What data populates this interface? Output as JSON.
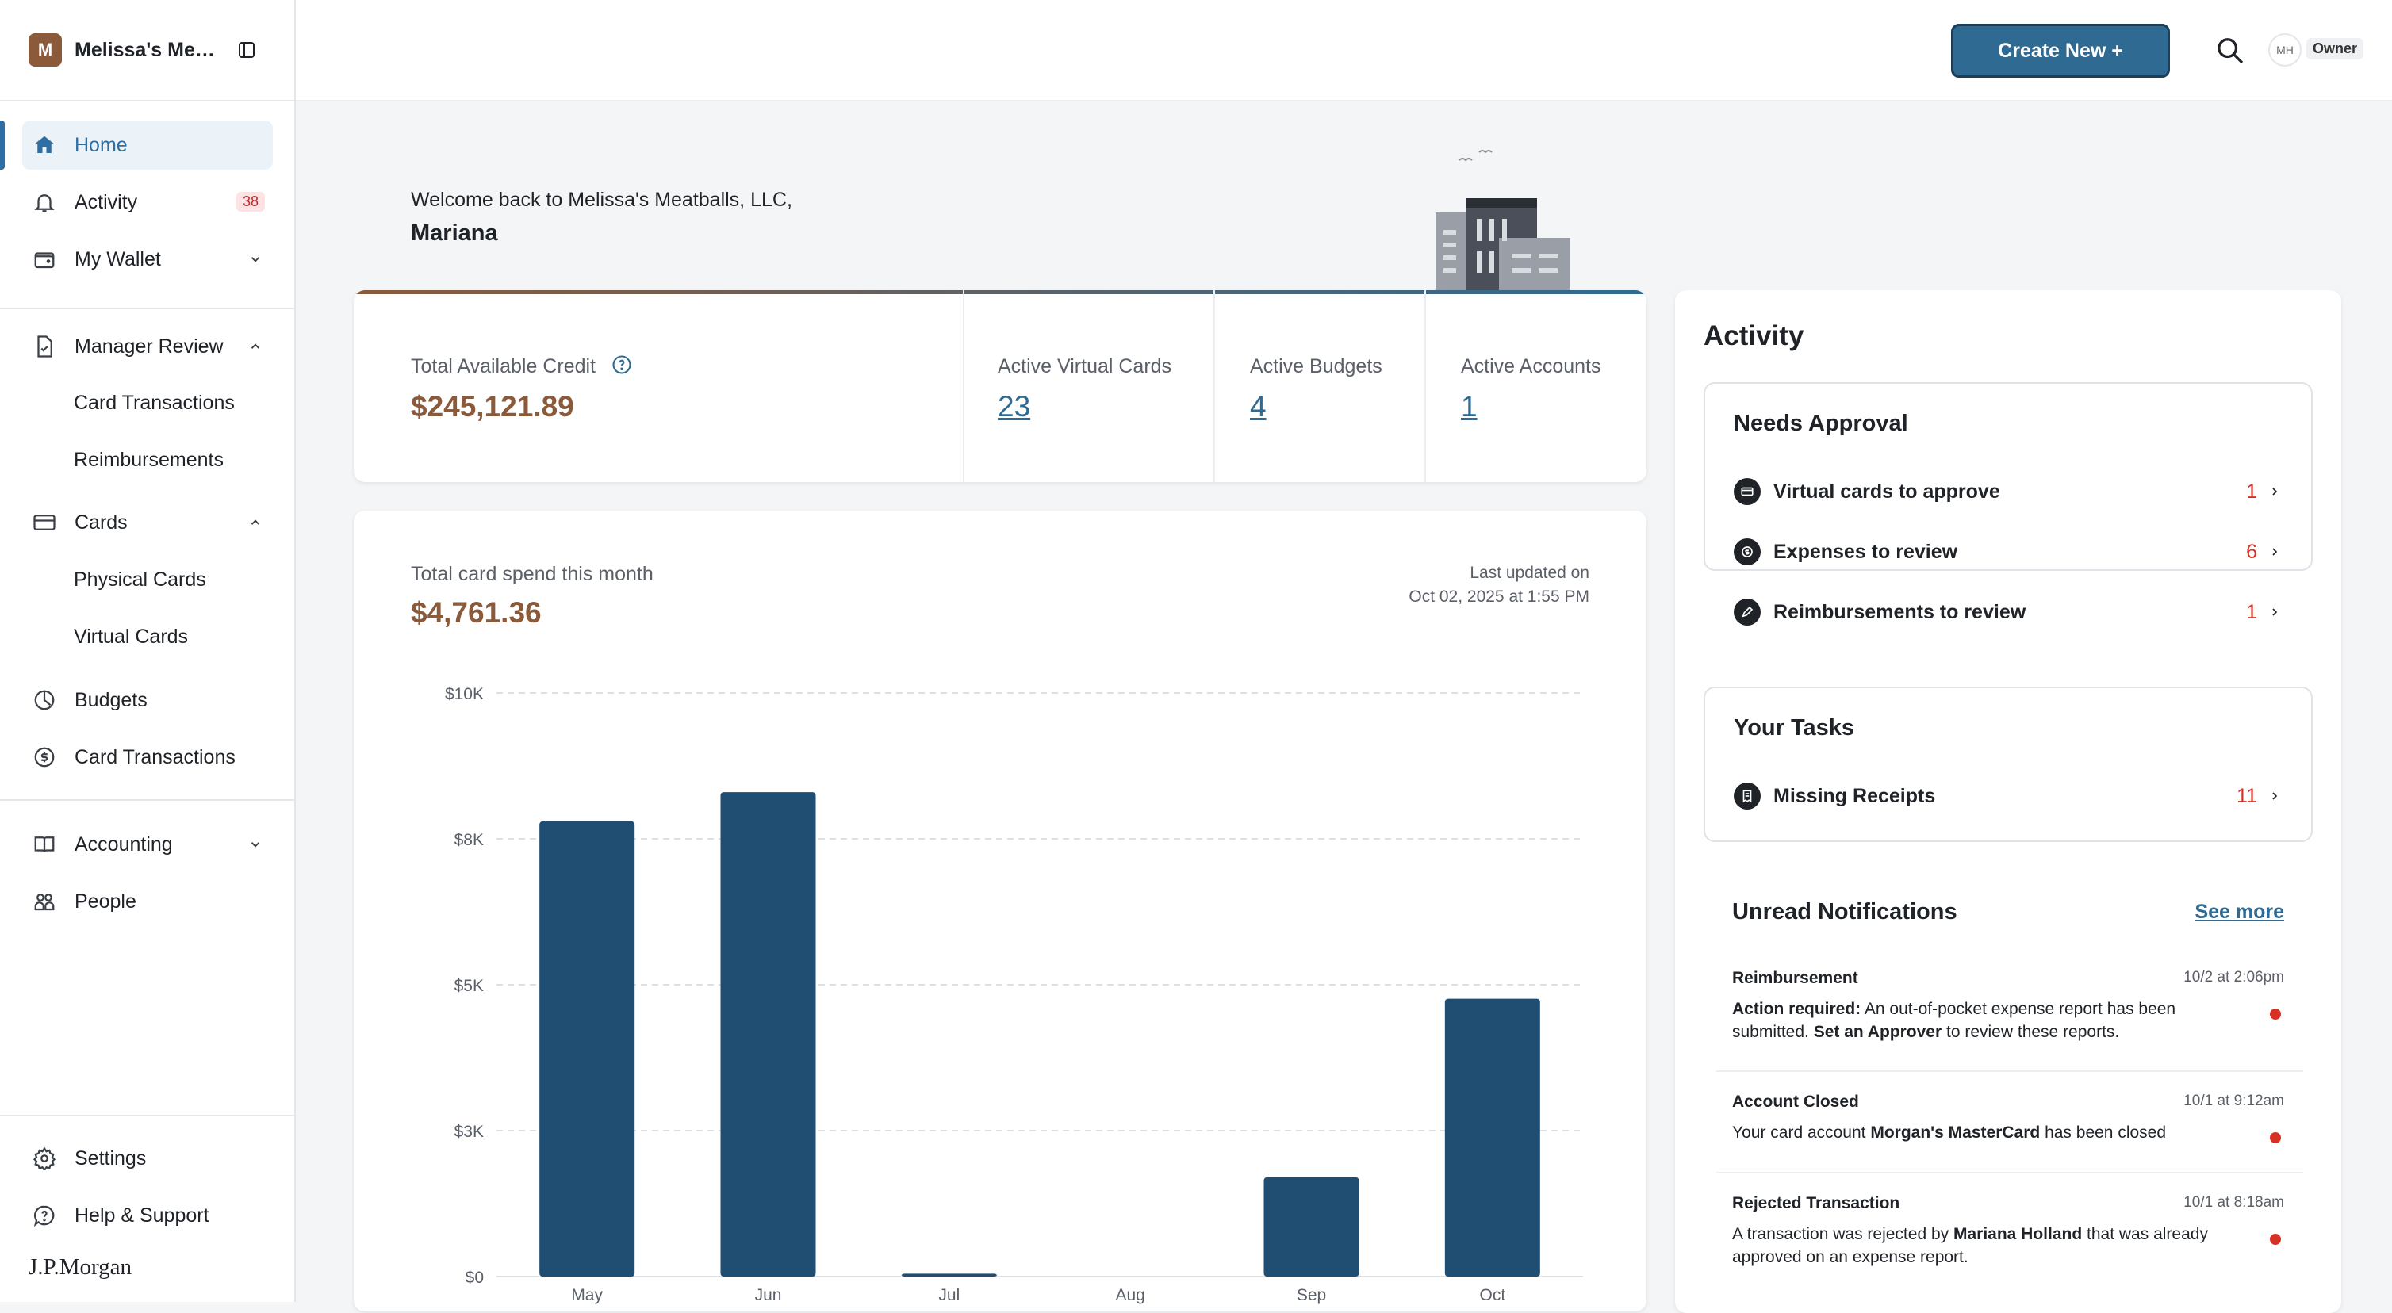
{
  "sidebar": {
    "org_initial": "M",
    "org_name": "Melissa's Mea...",
    "nav": {
      "home": "Home",
      "activity": "Activity",
      "activity_badge": "38",
      "wallet": "My Wallet",
      "manager_review": "Manager Review",
      "card_transactions_sub": "Card Transactions",
      "reimbursements": "Reimbursements",
      "cards": "Cards",
      "physical_cards": "Physical Cards",
      "virtual_cards": "Virtual Cards",
      "budgets": "Budgets",
      "card_transactions": "Card Transactions",
      "accounting": "Accounting",
      "people": "People",
      "settings": "Settings",
      "help": "Help & Support"
    },
    "brand": "J.P.Morgan"
  },
  "topbar": {
    "create_label": "Create New +",
    "user_initials": "MH",
    "role": "Owner"
  },
  "welcome": {
    "line": "Welcome back to Melissa's Meatballs, LLC,",
    "name": "Mariana"
  },
  "stats": {
    "credit_label": "Total Available Credit",
    "credit_value": "$245,121.89",
    "virtual_cards_label": "Active Virtual Cards",
    "virtual_cards_value": "23",
    "budgets_label": "Active Budgets",
    "budgets_value": "4",
    "accounts_label": "Active Accounts",
    "accounts_value": "1"
  },
  "spend": {
    "label": "Total card spend this month",
    "value": "$4,761.36",
    "updated_line1": "Last updated on",
    "updated_line2": "Oct 02, 2025 at 1:55 PM"
  },
  "chart_data": {
    "type": "bar",
    "categories": [
      "May",
      "Jun",
      "Jul",
      "Aug",
      "Sep",
      "Oct"
    ],
    "values": [
      7800,
      8300,
      50,
      0,
      1700,
      4761.36
    ],
    "y_tick_labels": [
      "$0",
      "$3K",
      "$5K",
      "$8K",
      "$10K"
    ],
    "y_tick_values": [
      0,
      2500,
      5000,
      7500,
      10000
    ],
    "ylim": [
      0,
      10000
    ],
    "bar_color": "#204e72",
    "grid": true
  },
  "activity": {
    "title": "Activity",
    "needs_approval": {
      "title": "Needs Approval",
      "items": [
        {
          "label": "Virtual cards to approve",
          "count": "1"
        },
        {
          "label": "Expenses to review",
          "count": "6"
        },
        {
          "label": "Reimbursements to review",
          "count": "1"
        }
      ]
    },
    "tasks": {
      "title": "Your Tasks",
      "items": [
        {
          "label": "Missing Receipts",
          "count": "11"
        }
      ]
    },
    "notifications": {
      "title": "Unread Notifications",
      "see_more": "See more",
      "items": [
        {
          "title": "Reimbursement",
          "time": "10/2 at 2:06pm",
          "b1": "Action required:",
          "t1": " An out-of-pocket expense report has been submitted. ",
          "b2": "Set an Approver",
          "t2": " to review these reports."
        },
        {
          "title": "Account Closed",
          "time": "10/1 at 9:12am",
          "t0": "Your card account ",
          "b1": "Morgan's MasterCard",
          "t1": " has been closed"
        },
        {
          "title": "Rejected Transaction",
          "time": "10/1 at 8:18am",
          "t0": "A transaction was rejected by ",
          "b1": "Mariana Holland",
          "t1": " that was already approved on an expense report."
        }
      ]
    }
  },
  "colors": {
    "brand_brown": "#8a5a3b",
    "brand_blue": "#2f6a92",
    "alert_red": "#d93025"
  }
}
